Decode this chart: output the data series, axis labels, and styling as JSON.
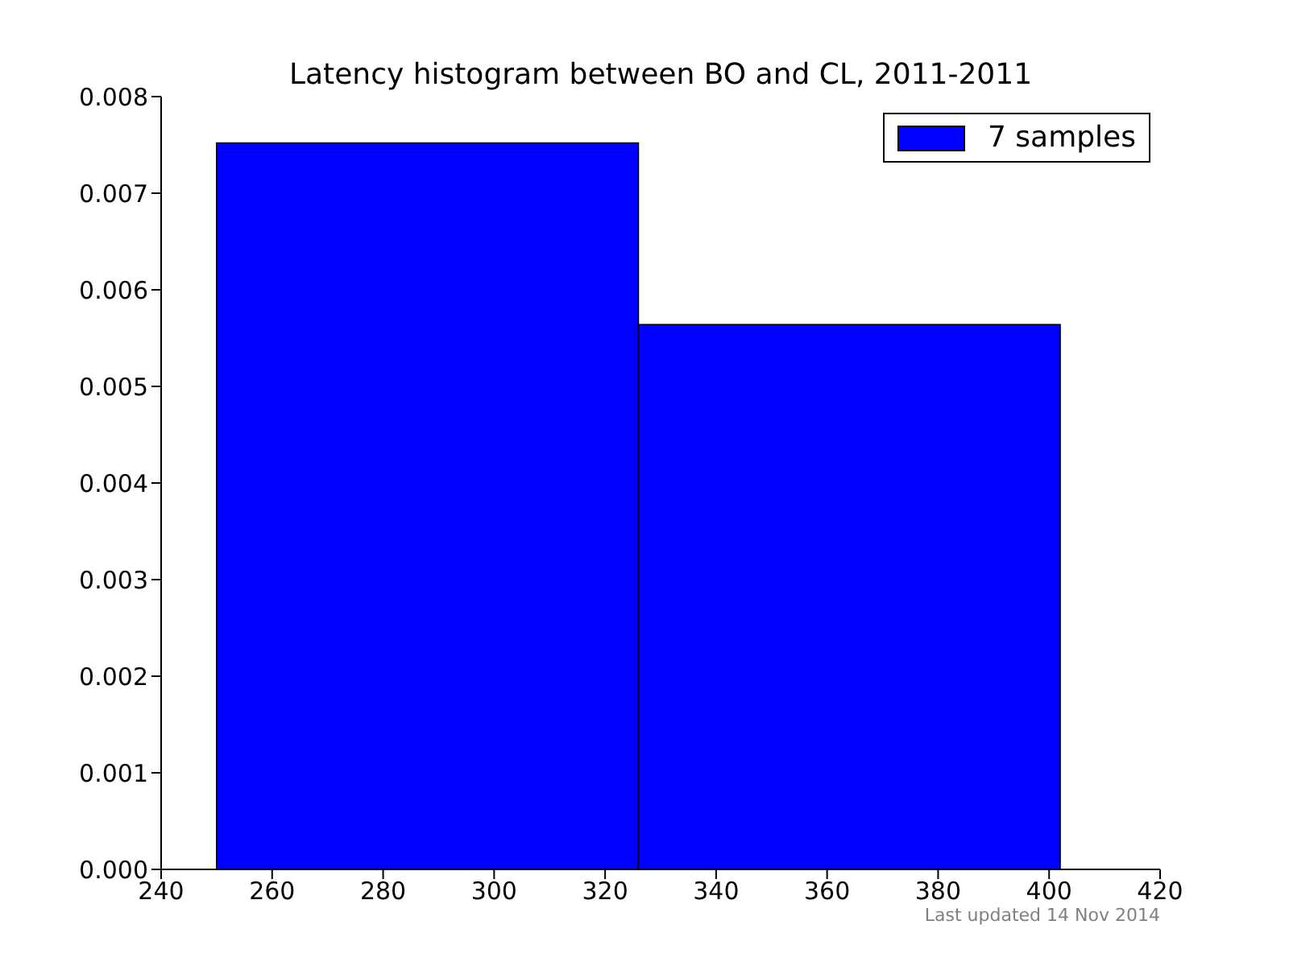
{
  "chart_data": {
    "type": "histogram",
    "title": "Latency histogram between BO and CL, 2011-2011",
    "bins": [
      250,
      326,
      402
    ],
    "series": [
      {
        "name": "7 samples",
        "color": "#0000ff",
        "values": [
          0.00752,
          0.00564
        ]
      }
    ],
    "xlim": [
      240,
      420
    ],
    "xticks": [
      240,
      260,
      280,
      300,
      320,
      340,
      360,
      380,
      400,
      420
    ],
    "ylim": [
      0,
      0.008
    ],
    "yticks": [
      {
        "value": 0,
        "label": "0.000"
      },
      {
        "value": 0.001,
        "label": "0.001"
      },
      {
        "value": 0.002,
        "label": "0.002"
      },
      {
        "value": 0.003,
        "label": "0.003"
      },
      {
        "value": 0.004,
        "label": "0.004"
      },
      {
        "value": 0.005,
        "label": "0.005"
      },
      {
        "value": 0.006,
        "label": "0.006"
      },
      {
        "value": 0.007,
        "label": "0.007"
      },
      {
        "value": 0.008,
        "label": "0.008"
      }
    ],
    "grid": false,
    "legend": "top right",
    "annotations": [
      "Last updated 14 Nov 2014"
    ]
  }
}
